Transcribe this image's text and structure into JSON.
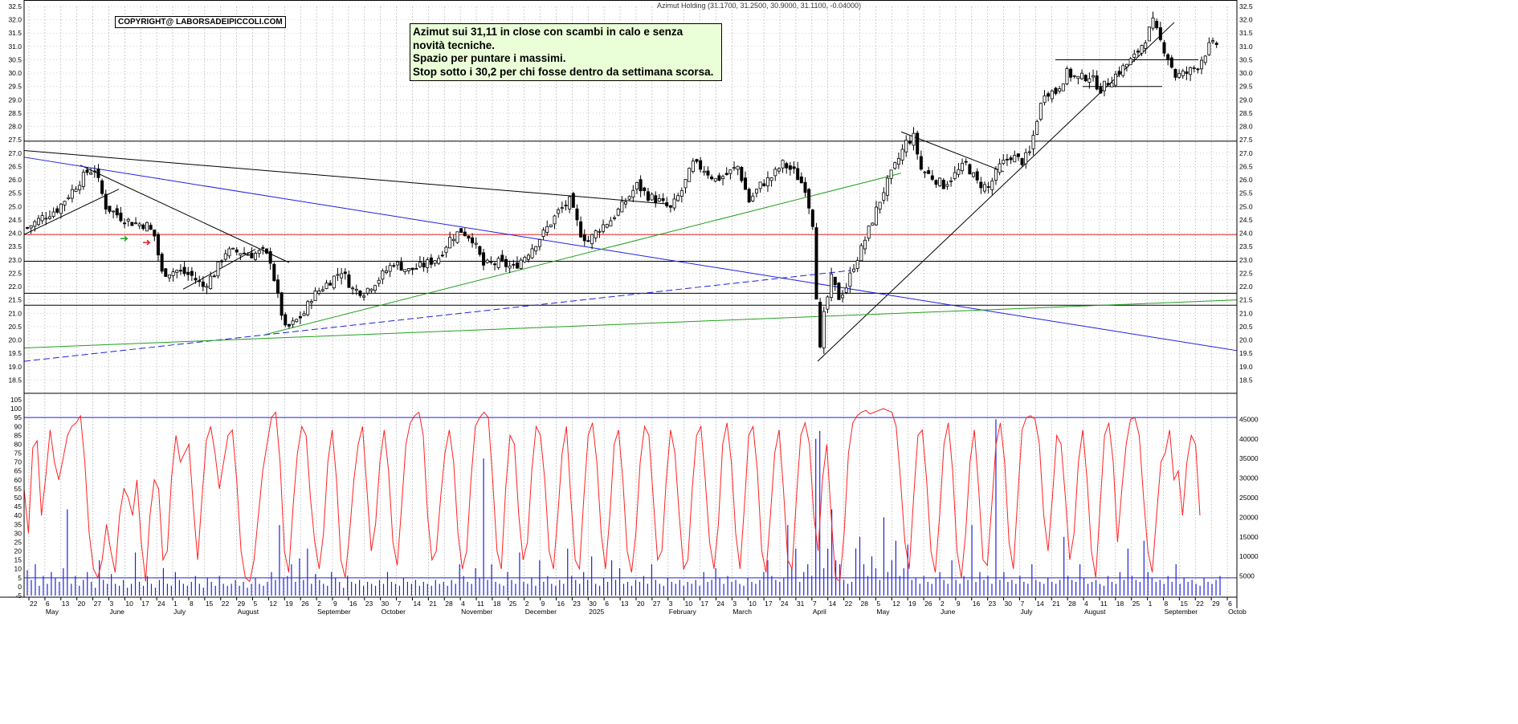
{
  "header": {
    "title": "Azimut Holding (31.1700, 31.2500, 30.9000, 31.1100, -0.04000)"
  },
  "copyright": "COPYRIGHT@ LABORSADEIPICCOLI.COM",
  "note": {
    "lines": [
      "Azimut sui 31,11 in close con scambi in calo e senza",
      "novità tecniche.",
      "Spazio per puntare i massimi.",
      "Stop sotto i 30,2 per chi fosse dentro da settimana scorsa."
    ]
  },
  "colors": {
    "background": "#ffffff",
    "grid": "#b8b8b8",
    "candle": "#000000",
    "blue_line": "#2020e0",
    "green_line": "#20a020",
    "red_line": "#e02020",
    "oscillator": "#ff2020",
    "volume": "#2020e0",
    "note_bg": "#eaffd8"
  },
  "chart_data": {
    "type": "candlestick",
    "price_axis": {
      "ylim": [
        18.0,
        32.5
      ],
      "tick_labels": [
        "18.5",
        "19.0",
        "19.5",
        "20.0",
        "20.5",
        "21.0",
        "21.5",
        "22.0",
        "22.5",
        "23.0",
        "23.5",
        "24.0",
        "24.5",
        "25.0",
        "25.5",
        "26.0",
        "26.5",
        "27.0",
        "27.5",
        "28.0",
        "28.5",
        "29.0",
        "29.5",
        "30.0",
        "30.5",
        "31.0",
        "31.5",
        "32.0",
        "32.5"
      ]
    },
    "oscillator_axis": {
      "ylim": [
        -5,
        105
      ],
      "tick_labels": [
        "-5",
        "0",
        "5",
        "10",
        "15",
        "20",
        "25",
        "30",
        "35",
        "40",
        "45",
        "50",
        "55",
        "60",
        "65",
        "70",
        "75",
        "80",
        "85",
        "90",
        "95",
        "100",
        "105"
      ]
    },
    "volume_axis": {
      "ylim": [
        0,
        50000
      ],
      "tick_labels": [
        "5000",
        "10000",
        "15000",
        "20000",
        "25000",
        "30000",
        "35000",
        "40000",
        "45000"
      ]
    },
    "date_ticks": [
      "22",
      "6",
      "13",
      "20",
      "27",
      "3",
      "10",
      "17",
      "24",
      "1",
      "8",
      "15",
      "22",
      "29",
      "5",
      "12",
      "19",
      "26",
      "2",
      "9",
      "16",
      "23",
      "30",
      "7",
      "14",
      "21",
      "28",
      "4",
      "11",
      "18",
      "25",
      "2",
      "9",
      "16",
      "23",
      "30",
      "6",
      "13",
      "20",
      "27",
      "3",
      "10",
      "17",
      "24",
      "3",
      "10",
      "17",
      "24",
      "31",
      "7",
      "14",
      "22",
      "28",
      "5",
      "12",
      "19",
      "26",
      "2",
      "9",
      "16",
      "23",
      "30",
      "7",
      "14",
      "21",
      "28",
      "4",
      "11",
      "18",
      "25",
      "1",
      "8",
      "15",
      "22",
      "29",
      "6"
    ],
    "month_labels": [
      "May",
      "June",
      "July",
      "August",
      "September",
      "October",
      "November",
      "December",
      "2025",
      "February",
      "March",
      "April",
      "May",
      "June",
      "July",
      "August",
      "September",
      "Octob"
    ],
    "price_series": {
      "anchors": [
        {
          "i": 0,
          "v": 24.2
        },
        {
          "i": 4,
          "v": 24.6
        },
        {
          "i": 8,
          "v": 24.9
        },
        {
          "i": 12,
          "v": 25.6
        },
        {
          "i": 16,
          "v": 26.3
        },
        {
          "i": 18,
          "v": 26.4
        },
        {
          "i": 21,
          "v": 25.0
        },
        {
          "i": 25,
          "v": 24.6
        },
        {
          "i": 28,
          "v": 24.4
        },
        {
          "i": 32,
          "v": 24.3
        },
        {
          "i": 34,
          "v": 23.9
        },
        {
          "i": 36,
          "v": 22.5
        },
        {
          "i": 40,
          "v": 22.6
        },
        {
          "i": 44,
          "v": 22.4
        },
        {
          "i": 47,
          "v": 22.0
        },
        {
          "i": 50,
          "v": 22.5
        },
        {
          "i": 53,
          "v": 23.3
        },
        {
          "i": 57,
          "v": 23.3
        },
        {
          "i": 60,
          "v": 23.2
        },
        {
          "i": 63,
          "v": 23.3
        },
        {
          "i": 65,
          "v": 23.0
        },
        {
          "i": 67,
          "v": 21.6
        },
        {
          "i": 69,
          "v": 20.4
        },
        {
          "i": 71,
          "v": 20.6
        },
        {
          "i": 74,
          "v": 21.0
        },
        {
          "i": 76,
          "v": 21.6
        },
        {
          "i": 80,
          "v": 22.1
        },
        {
          "i": 84,
          "v": 22.6
        },
        {
          "i": 87,
          "v": 21.9
        },
        {
          "i": 90,
          "v": 21.8
        },
        {
          "i": 94,
          "v": 22.3
        },
        {
          "i": 98,
          "v": 22.9
        },
        {
          "i": 102,
          "v": 22.6
        },
        {
          "i": 106,
          "v": 22.8
        },
        {
          "i": 110,
          "v": 23.1
        },
        {
          "i": 113,
          "v": 23.8
        },
        {
          "i": 116,
          "v": 24.1
        },
        {
          "i": 119,
          "v": 23.8
        },
        {
          "i": 122,
          "v": 22.8
        },
        {
          "i": 126,
          "v": 22.9
        },
        {
          "i": 130,
          "v": 22.7
        },
        {
          "i": 134,
          "v": 23.3
        },
        {
          "i": 138,
          "v": 24.0
        },
        {
          "i": 142,
          "v": 24.8
        },
        {
          "i": 145,
          "v": 25.2
        },
        {
          "i": 148,
          "v": 24.0
        },
        {
          "i": 150,
          "v": 23.7
        },
        {
          "i": 153,
          "v": 24.2
        },
        {
          "i": 156,
          "v": 24.5
        },
        {
          "i": 160,
          "v": 25.2
        },
        {
          "i": 163,
          "v": 25.8
        },
        {
          "i": 166,
          "v": 25.4
        },
        {
          "i": 169,
          "v": 25.2
        },
        {
          "i": 172,
          "v": 24.9
        },
        {
          "i": 175,
          "v": 25.6
        },
        {
          "i": 178,
          "v": 26.6
        },
        {
          "i": 181,
          "v": 26.4
        },
        {
          "i": 184,
          "v": 26.0
        },
        {
          "i": 187,
          "v": 26.2
        },
        {
          "i": 190,
          "v": 26.5
        },
        {
          "i": 193,
          "v": 25.2
        },
        {
          "i": 196,
          "v": 25.8
        },
        {
          "i": 199,
          "v": 26.1
        },
        {
          "i": 202,
          "v": 26.6
        },
        {
          "i": 205,
          "v": 26.3
        },
        {
          "i": 208,
          "v": 25.7
        },
        {
          "i": 210,
          "v": 24.4
        },
        {
          "i": 211,
          "v": 21.7
        },
        {
          "i": 212,
          "v": 19.6
        },
        {
          "i": 213,
          "v": 20.9
        },
        {
          "i": 215,
          "v": 22.3
        },
        {
          "i": 217,
          "v": 21.6
        },
        {
          "i": 219,
          "v": 22.0
        },
        {
          "i": 221,
          "v": 22.8
        },
        {
          "i": 223,
          "v": 23.4
        },
        {
          "i": 226,
          "v": 24.5
        },
        {
          "i": 229,
          "v": 25.6
        },
        {
          "i": 232,
          "v": 26.5
        },
        {
          "i": 235,
          "v": 27.4
        },
        {
          "i": 237,
          "v": 27.6
        },
        {
          "i": 239,
          "v": 26.4
        },
        {
          "i": 242,
          "v": 26.1
        },
        {
          "i": 245,
          "v": 25.8
        },
        {
          "i": 248,
          "v": 26.2
        },
        {
          "i": 251,
          "v": 26.6
        },
        {
          "i": 254,
          "v": 25.9
        },
        {
          "i": 257,
          "v": 25.7
        },
        {
          "i": 260,
          "v": 26.5
        },
        {
          "i": 263,
          "v": 26.9
        },
        {
          "i": 266,
          "v": 26.7
        },
        {
          "i": 268,
          "v": 27.0
        },
        {
          "i": 270,
          "v": 28.3
        },
        {
          "i": 272,
          "v": 29.3
        },
        {
          "i": 275,
          "v": 29.3
        },
        {
          "i": 278,
          "v": 30.0
        },
        {
          "i": 281,
          "v": 29.8
        },
        {
          "i": 284,
          "v": 29.9
        },
        {
          "i": 287,
          "v": 29.4
        },
        {
          "i": 290,
          "v": 29.8
        },
        {
          "i": 293,
          "v": 30.2
        },
        {
          "i": 296,
          "v": 30.6
        },
        {
          "i": 299,
          "v": 31.3
        },
        {
          "i": 301,
          "v": 31.9
        },
        {
          "i": 303,
          "v": 31.2
        },
        {
          "i": 305,
          "v": 30.6
        },
        {
          "i": 307,
          "v": 29.9
        },
        {
          "i": 310,
          "v": 30.0
        },
        {
          "i": 313,
          "v": 30.3
        },
        {
          "i": 316,
          "v": 31.0
        },
        {
          "i": 318,
          "v": 31.1
        }
      ],
      "last_close": 31.11
    },
    "trend_lines": [
      {
        "color": "black",
        "from": [
          "May 2024",
          27.1
        ],
        "to": [
          "Dec 2024",
          25.1
        ]
      },
      {
        "color": "black",
        "from": [
          "May 2024",
          23.95
        ],
        "to": [
          "May 2024",
          25.65
        ]
      },
      {
        "color": "black",
        "from": [
          "May 2024",
          26.5
        ],
        "to": [
          "Aug 2024",
          22.9
        ]
      },
      {
        "color": "black",
        "from": [
          "Jul 2024",
          21.9
        ],
        "to": [
          "Jul 2024",
          23.4
        ]
      },
      {
        "color": "black",
        "from": [
          "Apr 2025",
          19.2
        ],
        "to": [
          "Aug 2025",
          31.9
        ]
      },
      {
        "color": "black",
        "from": [
          "May 2025",
          27.8
        ],
        "to": [
          "Jun 2025",
          26.3
        ]
      },
      {
        "color": "black",
        "from": [
          "Aug 2025",
          30.5
        ],
        "to": [
          "Sep 2025",
          30.5
        ]
      },
      {
        "color": "black",
        "from": [
          "Aug 2025",
          29.5
        ],
        "to": [
          "Sep 2025",
          29.5
        ]
      },
      {
        "color": "blue",
        "from": [
          "May 2024",
          26.85
        ],
        "to": [
          "Oct 2025",
          19.6
        ]
      },
      {
        "color": "blue",
        "style": "dashed",
        "from": [
          "May 2024",
          19.2
        ],
        "to": [
          "Apr 2025",
          22.6
        ]
      },
      {
        "color": "green",
        "from": [
          "May 2024",
          19.7
        ],
        "to": [
          "Oct 2025",
          21.5
        ]
      },
      {
        "color": "green",
        "from": [
          "Aug 2024",
          20.2
        ],
        "to": [
          "May 2025",
          26.2
        ]
      }
    ],
    "horizontal_levels": [
      {
        "color": "black",
        "value": 27.45
      },
      {
        "color": "red",
        "value": 23.95
      },
      {
        "color": "black",
        "value": 22.95
      },
      {
        "color": "black",
        "value": 21.75
      },
      {
        "color": "black",
        "value": 21.3
      }
    ],
    "oscillator_levels": [
      95,
      5
    ],
    "oscillator_series": [
      55,
      30,
      78,
      82,
      40,
      62,
      88,
      70,
      60,
      72,
      85,
      90,
      92,
      96,
      70,
      30,
      10,
      5,
      15,
      35,
      20,
      8,
      40,
      55,
      50,
      40,
      60,
      25,
      3,
      40,
      60,
      55,
      15,
      20,
      62,
      85,
      70,
      75,
      80,
      45,
      15,
      50,
      82,
      90,
      75,
      55,
      70,
      85,
      88,
      60,
      20,
      5,
      3,
      15,
      40,
      65,
      80,
      95,
      98,
      70,
      20,
      8,
      45,
      75,
      90,
      85,
      50,
      25,
      10,
      30,
      70,
      88,
      60,
      15,
      5,
      30,
      60,
      80,
      90,
      55,
      20,
      35,
      70,
      88,
      65,
      25,
      12,
      45,
      80,
      92,
      96,
      98,
      85,
      40,
      15,
      20,
      50,
      75,
      88,
      70,
      30,
      10,
      20,
      60,
      90,
      95,
      98,
      95,
      60,
      20,
      10,
      55,
      85,
      80,
      40,
      15,
      25,
      65,
      90,
      85,
      60,
      20,
      10,
      40,
      75,
      90,
      50,
      15,
      10,
      50,
      85,
      92,
      70,
      30,
      10,
      40,
      80,
      88,
      60,
      20,
      8,
      30,
      70,
      90,
      85,
      50,
      15,
      20,
      60,
      88,
      75,
      40,
      10,
      15,
      55,
      85,
      90,
      60,
      25,
      10,
      35,
      80,
      92,
      70,
      30,
      10,
      45,
      85,
      90,
      65,
      20,
      8,
      40,
      75,
      88,
      55,
      15,
      10,
      50,
      85,
      92,
      80,
      40,
      20,
      60,
      80,
      40,
      5,
      3,
      30,
      75,
      92,
      96,
      98,
      99,
      97,
      98,
      99,
      100,
      99,
      98,
      90,
      60,
      25,
      10,
      50,
      85,
      88,
      60,
      20,
      8,
      40,
      80,
      92,
      65,
      20,
      5,
      30,
      70,
      88,
      55,
      15,
      12,
      45,
      80,
      92,
      70,
      25,
      10,
      50,
      88,
      95,
      96,
      94,
      80,
      40,
      20,
      50,
      85,
      80,
      50,
      15,
      30,
      70,
      88,
      60,
      20,
      5,
      45,
      85,
      92,
      70,
      25,
      55,
      80,
      94,
      95,
      85,
      50,
      20,
      8,
      40,
      70,
      75,
      88,
      60,
      65,
      40,
      70,
      85,
      80,
      40
    ],
    "volume_series": [
      6500,
      4000,
      8000,
      2500,
      5000,
      3000,
      6000,
      4500,
      3500,
      7000,
      22000,
      3000,
      5000,
      2500,
      4000,
      6000,
      3500,
      2000,
      9000,
      4000,
      3000,
      5500,
      3000,
      2500,
      4000,
      2000,
      3000,
      11000,
      3500,
      2500,
      5000,
      3000,
      2000,
      4000,
      7000,
      3000,
      2500,
      6000,
      4000,
      3000,
      2500,
      3500,
      5000,
      3000,
      2000,
      4500,
      3500,
      2500,
      5000,
      3000,
      2500,
      3000,
      4000,
      2500,
      3500,
      2000,
      3000,
      4500,
      3000,
      2500,
      3500,
      6000,
      4000,
      18000,
      4500,
      5000,
      8000,
      3500,
      9500,
      4000,
      12000,
      3000,
      5500,
      4000,
      3000,
      2500,
      6000,
      4500,
      3500,
      2000,
      5000,
      3500,
      3000,
      4000,
      2500,
      3500,
      3000,
      2500,
      4000,
      3000,
      6000,
      3500,
      3000,
      2500,
      4500,
      3500,
      3000,
      4000,
      2500,
      3500,
      3000,
      2500,
      4000,
      3000,
      3500,
      2500,
      4000,
      3000,
      8000,
      5000,
      3500,
      3000,
      7000,
      4500,
      35000,
      4000,
      8000,
      3500,
      3000,
      2500,
      6000,
      4000,
      3000,
      11000,
      3500,
      3000,
      4500,
      2500,
      9000,
      3500,
      5000,
      3000,
      2500,
      4000,
      3000,
      12000,
      5000,
      4000,
      3000,
      6000,
      4000,
      10000,
      3000,
      2500,
      4500,
      3500,
      9000,
      4000,
      7000,
      3000,
      3500,
      2500,
      4000,
      3500,
      5000,
      3000,
      8000,
      4000,
      3000,
      2500,
      4500,
      3500,
      3000,
      4000,
      2500,
      3500,
      3000,
      4000,
      2500,
      6000,
      3500,
      4000,
      7000,
      4500,
      3000,
      5000,
      3500,
      4000,
      3000,
      2500,
      4500,
      3500,
      3000,
      4000,
      6000,
      9000,
      5000,
      4000,
      3500,
      4500,
      18000,
      7000,
      12000,
      3500,
      6000,
      8000,
      5000,
      40000,
      42000,
      7000,
      12000,
      22000,
      9000,
      8000,
      4000,
      3000,
      3500,
      12000,
      15000,
      8000,
      5000,
      10000,
      7000,
      4000,
      20000,
      6000,
      9000,
      14000,
      5000,
      7000,
      13000,
      4000,
      4500,
      3000,
      5000,
      3500,
      3000,
      4500,
      6000,
      4000,
      3000,
      9000,
      4000,
      3000,
      5000,
      4000,
      18000,
      3500,
      6000,
      4000,
      5000,
      3000,
      45000,
      4000,
      6000,
      3500,
      4000,
      3000,
      5000,
      3500,
      3000,
      8000,
      4000,
      3500,
      3000,
      4500,
      3500,
      3000,
      4000,
      15000,
      5000,
      4000,
      3500,
      8000,
      4500,
      3000,
      3500,
      4000,
      3000,
      2500,
      5000,
      3500,
      3000,
      6000,
      4000,
      12000,
      5000,
      4000,
      3500,
      14000,
      6000,
      4500,
      3500,
      4000,
      3000,
      5000,
      3500,
      8000,
      3000,
      4500,
      3500,
      4000,
      3000,
      2500,
      4500,
      3500,
      3000,
      4000,
      5000
    ]
  }
}
